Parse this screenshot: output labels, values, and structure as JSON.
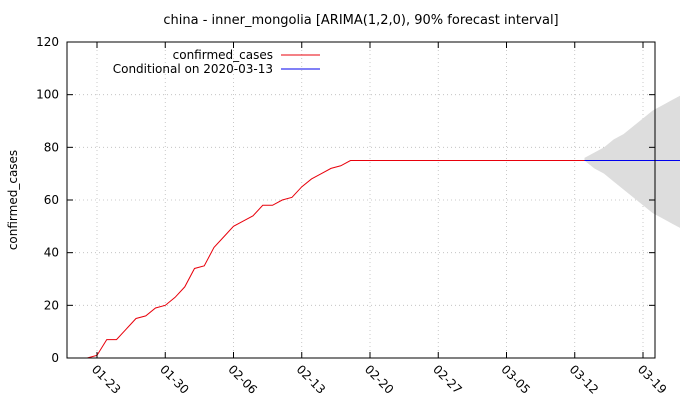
{
  "chart_data": {
    "type": "line",
    "title": "china - inner_mongolia [ARIMA(1,2,0), 90% forecast interval]",
    "xlabel": "",
    "ylabel": "confirmed_cases",
    "ylim": [
      0,
      120
    ],
    "y_ticks": [
      0,
      20,
      40,
      60,
      80,
      100,
      120
    ],
    "x_tick_labels": [
      "01-23",
      "01-30",
      "02-06",
      "02-13",
      "02-20",
      "02-27",
      "03-05",
      "03-12",
      "03-19"
    ],
    "grid": true,
    "legend_position": "top-left",
    "colors": {
      "confirmed": "#e8000b",
      "forecast": "#0000ee",
      "interval": "#dddddd"
    },
    "series": [
      {
        "name": "confirmed_cases",
        "x_start": "01-22",
        "values": [
          0,
          1,
          7,
          7,
          11,
          15,
          16,
          19,
          20,
          23,
          27,
          34,
          35,
          42,
          46,
          50,
          52,
          54,
          58,
          58,
          60,
          61,
          65,
          68,
          70,
          72,
          73,
          75,
          75,
          75,
          75,
          75,
          75,
          75,
          75,
          75,
          75,
          75,
          75,
          75,
          75,
          75,
          75,
          75,
          75,
          75,
          75,
          75,
          75,
          75,
          75,
          75
        ]
      },
      {
        "name": "Conditional on 2020-03-13",
        "x_start": "03-13",
        "values": [
          75,
          75,
          75,
          75,
          75,
          75,
          75,
          75,
          75,
          75,
          75
        ]
      }
    ],
    "forecast_interval": {
      "x_start": "03-13",
      "lower": [
        75,
        72,
        70,
        67,
        64,
        61,
        58,
        55,
        53,
        51,
        49
      ],
      "upper": [
        76,
        78,
        80,
        83,
        85,
        88,
        91,
        94,
        96,
        98,
        100
      ]
    }
  }
}
